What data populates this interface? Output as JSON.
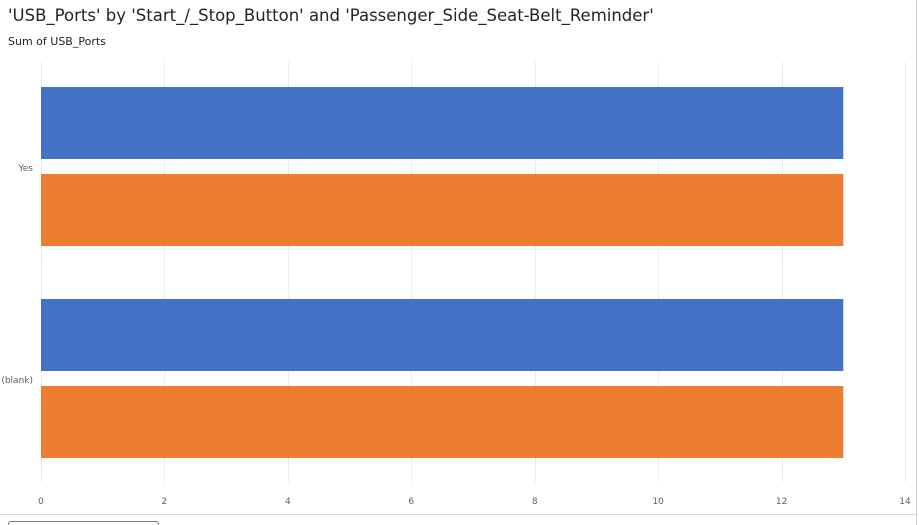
{
  "chart_data": {
    "type": "bar",
    "orientation": "horizontal",
    "title": "'USB_Ports' by 'Start_/_Stop_Button' and 'Passenger_Side_Seat-Belt_Reminder'",
    "subtitle": "Sum of USB_Ports",
    "categories": [
      "Yes",
      "(blank)"
    ],
    "series": [
      {
        "values": [
          13,
          13
        ],
        "color": "#4472C4"
      },
      {
        "values": [
          13,
          13
        ],
        "color": "#ED7D31"
      }
    ],
    "xlim": [
      0,
      14
    ],
    "xticks": [
      0,
      2,
      4,
      6,
      8,
      10,
      12,
      14
    ],
    "grid": true,
    "legend": "none"
  }
}
